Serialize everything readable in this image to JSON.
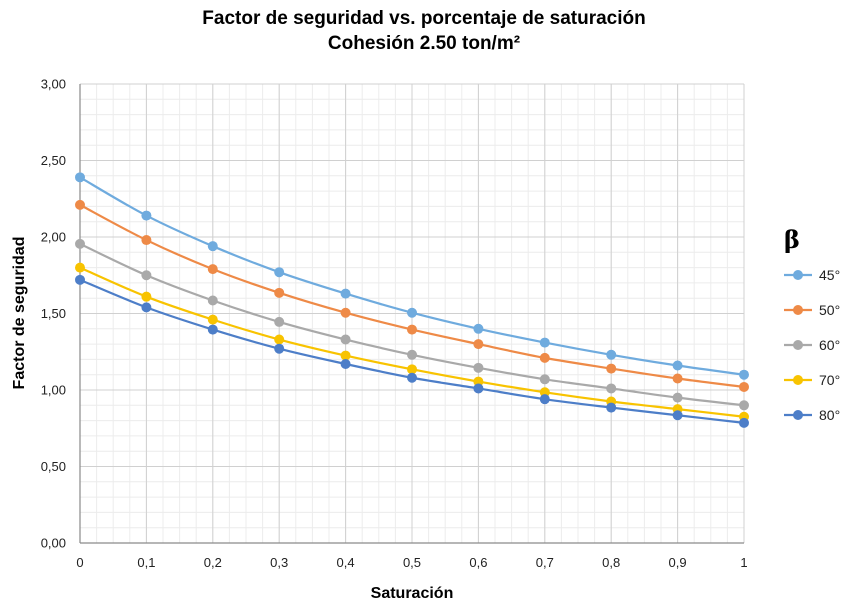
{
  "chart_data": {
    "type": "line",
    "title": "Factor de seguridad vs. porcentaje de saturación",
    "subtitle": "Cohesión 2.50 ton/m²",
    "xlabel": "Saturación",
    "ylabel": "Factor de seguridad",
    "xlim": [
      0,
      1
    ],
    "ylim": [
      0,
      3
    ],
    "x": [
      0,
      0.1,
      0.2,
      0.3,
      0.4,
      0.5,
      0.6,
      0.7,
      0.8,
      0.9,
      1
    ],
    "x_tick_labels": [
      "0",
      "0,1",
      "0,2",
      "0,3",
      "0,4",
      "0,5",
      "0,6",
      "0,7",
      "0,8",
      "0,9",
      "1"
    ],
    "y_ticks": [
      0,
      0.5,
      1,
      1.5,
      2,
      2.5,
      3
    ],
    "y_tick_labels": [
      "0,00",
      "0,50",
      "1,00",
      "1,50",
      "2,00",
      "2,50",
      "3,00"
    ],
    "grid": true,
    "legend_title": "β",
    "legend_position": "right",
    "series": [
      {
        "name": "45°",
        "color": "#6fabde",
        "values": [
          2.39,
          2.14,
          1.94,
          1.77,
          1.63,
          1.505,
          1.4,
          1.31,
          1.23,
          1.16,
          1.1
        ]
      },
      {
        "name": "50°",
        "color": "#ee8a47",
        "values": [
          2.21,
          1.98,
          1.79,
          1.635,
          1.505,
          1.395,
          1.3,
          1.21,
          1.14,
          1.075,
          1.02
        ]
      },
      {
        "name": "60°",
        "color": "#a9a9a9",
        "values": [
          1.955,
          1.75,
          1.585,
          1.445,
          1.33,
          1.23,
          1.145,
          1.07,
          1.01,
          0.95,
          0.9
        ]
      },
      {
        "name": "70°",
        "color": "#f8c300",
        "values": [
          1.8,
          1.61,
          1.46,
          1.33,
          1.225,
          1.135,
          1.055,
          0.985,
          0.925,
          0.875,
          0.825
        ]
      },
      {
        "name": "80°",
        "color": "#4d7ec8",
        "values": [
          1.72,
          1.54,
          1.395,
          1.27,
          1.17,
          1.08,
          1.01,
          0.94,
          0.885,
          0.835,
          0.785
        ]
      }
    ]
  }
}
